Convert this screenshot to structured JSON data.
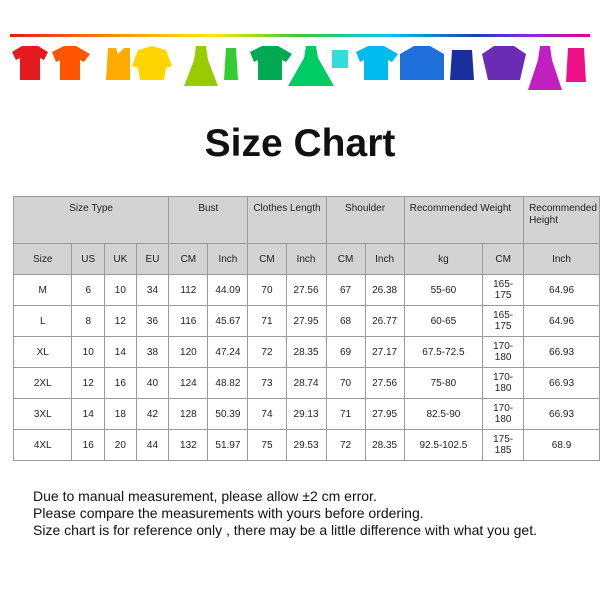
{
  "title": "Size Chart",
  "table": {
    "group_headers": [
      "Size Type",
      "Bust",
      "Clothes Length",
      "Shoulder",
      "Recommended Weight",
      "Recommended Height"
    ],
    "sub_headers": [
      "Size",
      "US",
      "UK",
      "EU",
      "CM",
      "Inch",
      "CM",
      "Inch",
      "CM",
      "Inch",
      "kg",
      "CM",
      "Inch"
    ],
    "rows": [
      [
        "M",
        "6",
        "10",
        "34",
        "112",
        "44.09",
        "70",
        "27.56",
        "67",
        "26.38",
        "55-60",
        "165-175",
        "64.96"
      ],
      [
        "L",
        "8",
        "12",
        "36",
        "116",
        "45.67",
        "71",
        "27.95",
        "68",
        "26.77",
        "60-65",
        "165-175",
        "64.96"
      ],
      [
        "XL",
        "10",
        "14",
        "38",
        "120",
        "47.24",
        "72",
        "28.35",
        "69",
        "27.17",
        "67.5-72.5",
        "170-180",
        "66.93"
      ],
      [
        "2XL",
        "12",
        "16",
        "40",
        "124",
        "48.82",
        "73",
        "28.74",
        "70",
        "27.56",
        "75-80",
        "170-180",
        "66.93"
      ],
      [
        "3XL",
        "14",
        "18",
        "42",
        "128",
        "50.39",
        "74",
        "29.13",
        "71",
        "27.95",
        "82.5-90",
        "170-180",
        "66.93"
      ],
      [
        "4XL",
        "16",
        "20",
        "44",
        "132",
        "51.97",
        "75",
        "29.53",
        "72",
        "28.35",
        "92.5-102.5",
        "175-185",
        "68.9"
      ]
    ]
  },
  "notes": [
    "Due to manual measurement, please allow ±2 cm error.",
    "Please compare the measurements with yours before ordering.",
    "Size chart is for reference only , there may be a little difference with what you get."
  ]
}
